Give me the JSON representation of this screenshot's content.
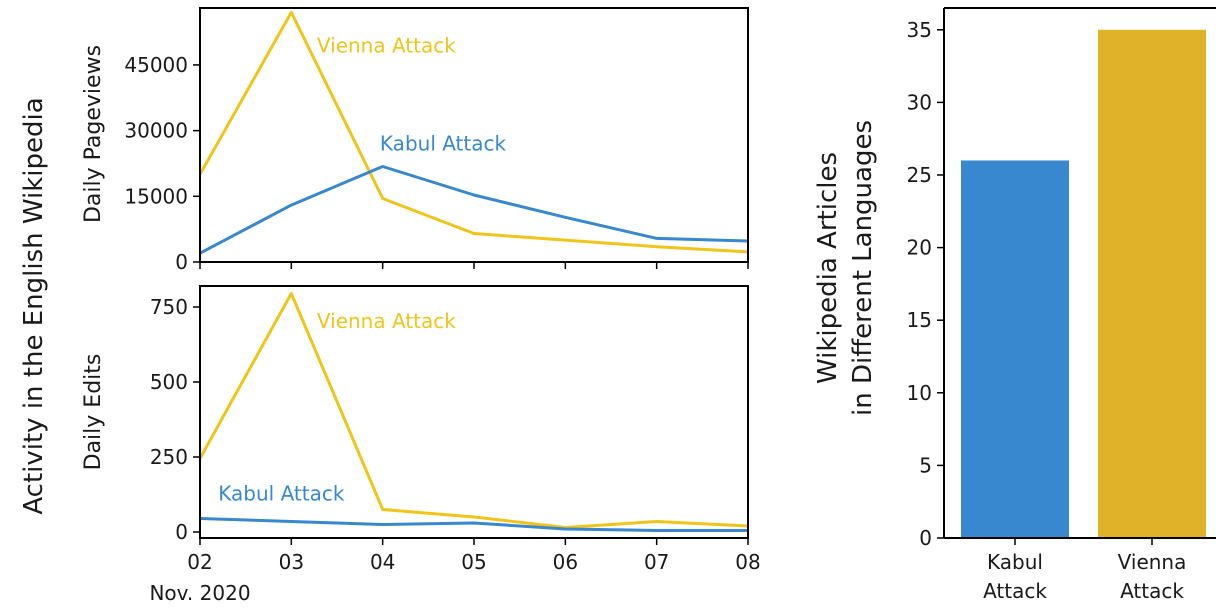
{
  "figure": {
    "left_ylabel": "Activity in the English Wikipedia",
    "colors": {
      "kabul": "#3788ce",
      "vienna": "#f0c419",
      "vienna_bar": "#e0b22a",
      "axis": "#000000"
    }
  },
  "chart_data": [
    {
      "type": "line",
      "ylabel": "Daily Pageviews",
      "x": [
        "02",
        "03",
        "04",
        "05",
        "06",
        "07",
        "08"
      ],
      "xlim": [
        2,
        8
      ],
      "ylim": [
        0,
        58000
      ],
      "yticks": [
        0,
        15000,
        30000,
        45000
      ],
      "series": [
        {
          "name": "Vienna Attack",
          "color": "#f0c419",
          "values": [
            20000,
            57000,
            14500,
            6500,
            5000,
            3500,
            2300
          ]
        },
        {
          "name": "Kabul Attack",
          "color": "#3788ce",
          "values": [
            2000,
            13000,
            21800,
            15300,
            10200,
            5400,
            4800
          ]
        }
      ]
    },
    {
      "type": "line",
      "ylabel": "Daily Edits",
      "x": [
        "02",
        "03",
        "04",
        "05",
        "06",
        "07",
        "08"
      ],
      "xlabel_extra": "Nov. 2020",
      "xlim": [
        2,
        8
      ],
      "ylim": [
        -20,
        820
      ],
      "yticks": [
        0,
        250,
        500,
        750
      ],
      "series": [
        {
          "name": "Vienna Attack",
          "color": "#f0c419",
          "values": [
            245,
            795,
            75,
            50,
            15,
            35,
            20
          ]
        },
        {
          "name": "Kabul Attack",
          "color": "#3788ce",
          "values": [
            45,
            35,
            25,
            30,
            10,
            5,
            5
          ]
        }
      ]
    },
    {
      "type": "bar",
      "ylabel_lines": [
        "Wikipedia Articles",
        "in Different Languages"
      ],
      "categories": [
        [
          "Kabul",
          "Attack"
        ],
        [
          "Vienna",
          "Attack"
        ]
      ],
      "values": [
        26,
        35
      ],
      "colors": [
        "#3788ce",
        "#e0b22a"
      ],
      "ylim": [
        0,
        36.5
      ],
      "yticks": [
        0,
        5,
        10,
        15,
        20,
        25,
        30,
        35
      ]
    }
  ]
}
